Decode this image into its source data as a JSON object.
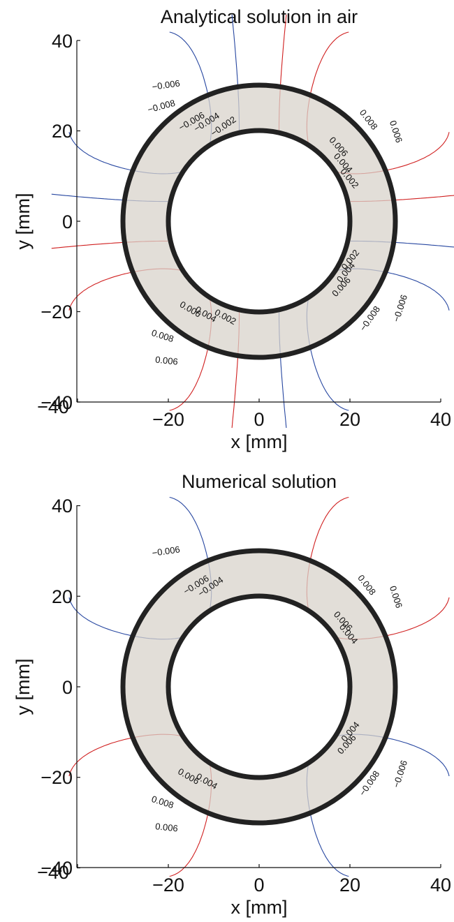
{
  "chart_data": [
    {
      "type": "contour",
      "title": "Analytical solution in air",
      "xlabel": "x [mm]",
      "ylabel": "y [mm]",
      "xlim": [
        -40,
        40
      ],
      "ylim": [
        -40,
        40
      ],
      "xticks": [
        "−40",
        "−20",
        "0",
        "20",
        "40"
      ],
      "yticks": [
        "40",
        "20",
        "0",
        "−20",
        "−40"
      ],
      "grid": false,
      "annulus": {
        "inner_radius": 20,
        "outer_radius": 30,
        "fill": "#d8d3cb",
        "stroke": "#222222"
      },
      "levels": [
        -0.008,
        -0.006,
        -0.004,
        -0.002,
        0.002,
        0.004,
        0.006,
        0.008
      ],
      "colors": {
        "positive": "#d01f1f",
        "negative": "#2646a0"
      },
      "labels": [
        {
          "text": "−0.006",
          "x": -20.5,
          "y": 30,
          "angle": -8
        },
        {
          "text": "−0.008",
          "x": -21.5,
          "y": 25.3,
          "angle": -15
        },
        {
          "text": "−0.006",
          "x": -14.8,
          "y": 22,
          "angle": -30
        },
        {
          "text": "−0.004",
          "x": -11.5,
          "y": 21.8,
          "angle": -32
        },
        {
          "text": "−0.002",
          "x": -7.8,
          "y": 20.9,
          "angle": -34
        },
        {
          "text": "0.008",
          "x": 24,
          "y": 22.4,
          "angle": 52
        },
        {
          "text": "0.006",
          "x": 30,
          "y": 19.8,
          "angle": 72
        },
        {
          "text": "0.006",
          "x": 17.4,
          "y": 16.4,
          "angle": 48
        },
        {
          "text": "0.004",
          "x": 18.4,
          "y": 12.8,
          "angle": 48
        },
        {
          "text": "0.002",
          "x": 19.8,
          "y": 9.4,
          "angle": 50
        },
        {
          "text": "0.002",
          "x": 20.2,
          "y": -8.6,
          "angle": -52
        },
        {
          "text": "0.004",
          "x": 19.2,
          "y": -11.4,
          "angle": -50
        },
        {
          "text": "0.006",
          "x": 18.2,
          "y": -14.6,
          "angle": -48
        },
        {
          "text": "−0.008",
          "x": 24.5,
          "y": -21.6,
          "angle": -55
        },
        {
          "text": "−0.006",
          "x": 31.2,
          "y": -19.3,
          "angle": -72
        },
        {
          "text": "0.006",
          "x": -15.2,
          "y": -19.6,
          "angle": 30
        },
        {
          "text": "0.004",
          "x": -11.8,
          "y": -20.7,
          "angle": 30
        },
        {
          "text": "0.002",
          "x": -7.5,
          "y": -21.3,
          "angle": 28
        },
        {
          "text": "0.008",
          "x": -21.3,
          "y": -25.5,
          "angle": 18
        },
        {
          "text": "0.006",
          "x": -20.4,
          "y": -31,
          "angle": 6
        }
      ]
    },
    {
      "type": "contour",
      "title": "Numerical solution",
      "xlabel": "x [mm]",
      "ylabel": "y [mm]",
      "xlim": [
        -40,
        40
      ],
      "ylim": [
        -40,
        40
      ],
      "xticks": [
        "−40",
        "−20",
        "0",
        "20",
        "40"
      ],
      "yticks": [
        "40",
        "20",
        "0",
        "−20",
        "−40"
      ],
      "grid": false,
      "annulus": {
        "inner_radius": 20,
        "outer_radius": 30,
        "fill": "#d8d3cb",
        "stroke": "#222222"
      },
      "levels": [
        -0.008,
        -0.006,
        -0.004,
        0.004,
        0.006,
        0.008
      ],
      "colors": {
        "positive": "#d01f1f",
        "negative": "#2646a0"
      },
      "labels": [
        {
          "text": "−0.006",
          "x": -20.5,
          "y": 29.8,
          "angle": -8
        },
        {
          "text": "−0.006",
          "x": -13.8,
          "y": 22.4,
          "angle": -32
        },
        {
          "text": "−0.004",
          "x": -10.6,
          "y": 22,
          "angle": -34
        },
        {
          "text": "0.008",
          "x": 23.6,
          "y": 22.4,
          "angle": 52
        },
        {
          "text": "0.006",
          "x": 30,
          "y": 19.8,
          "angle": 72
        },
        {
          "text": "0.006",
          "x": 18.4,
          "y": 14.4,
          "angle": 48
        },
        {
          "text": "0.004",
          "x": 19.6,
          "y": 11.6,
          "angle": 50
        },
        {
          "text": "0.004",
          "x": 20.2,
          "y": -10,
          "angle": -50
        },
        {
          "text": "0.006",
          "x": 19.4,
          "y": -12.8,
          "angle": -48
        },
        {
          "text": "−0.008",
          "x": 24.4,
          "y": -21.4,
          "angle": -55
        },
        {
          "text": "−0.006",
          "x": 31.2,
          "y": -19.3,
          "angle": -72
        },
        {
          "text": "0.006",
          "x": -15.6,
          "y": -19.9,
          "angle": 30
        },
        {
          "text": "0.004",
          "x": -11.6,
          "y": -21,
          "angle": 30
        },
        {
          "text": "0.008",
          "x": -21.3,
          "y": -25.6,
          "angle": 18
        },
        {
          "text": "0.006",
          "x": -20.4,
          "y": -31.2,
          "angle": 6
        }
      ]
    }
  ]
}
